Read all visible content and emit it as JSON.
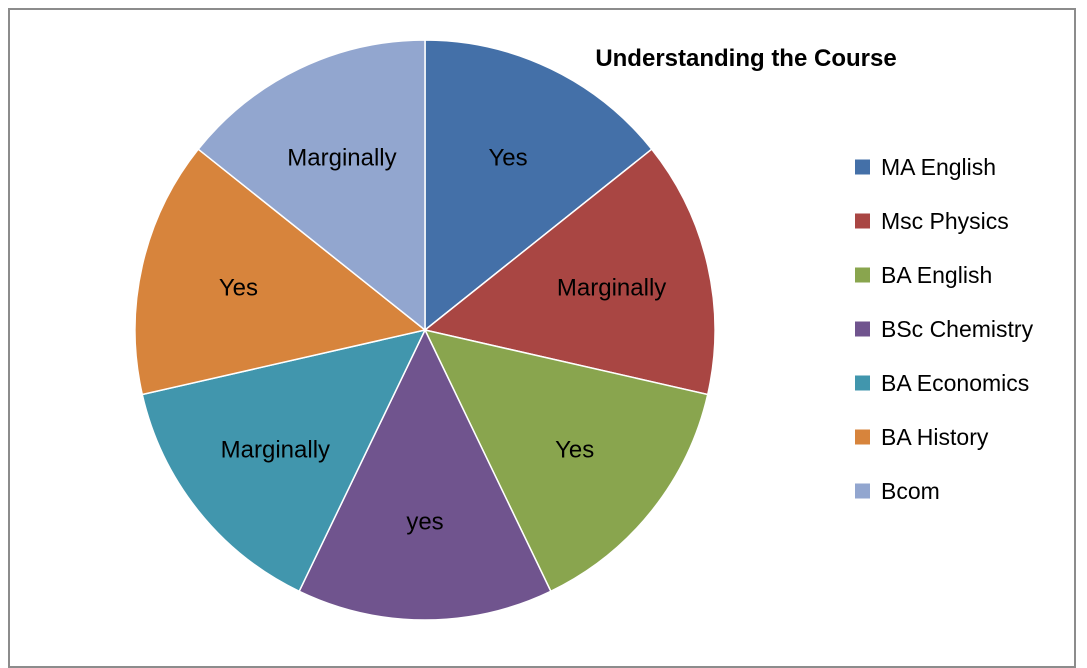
{
  "chart_data": {
    "type": "pie",
    "title": "Understanding the Course",
    "categories": [
      "MA English",
      "Msc Physics",
      "BA English",
      "BSc Chemistry",
      "BA Economics",
      "BA History",
      "Bcom"
    ],
    "values": [
      1,
      1,
      1,
      1,
      1,
      1,
      1
    ],
    "data_labels": [
      "Yes",
      "Marginally",
      "Yes",
      "yes",
      "Marginally",
      "Yes",
      "Marginally"
    ],
    "colors": [
      "#4470A8",
      "#A94643",
      "#89A54E",
      "#70548E",
      "#4196AD",
      "#D7843C",
      "#92A6CF"
    ],
    "legend_position": "right",
    "start_angle": "top, clockwise"
  }
}
